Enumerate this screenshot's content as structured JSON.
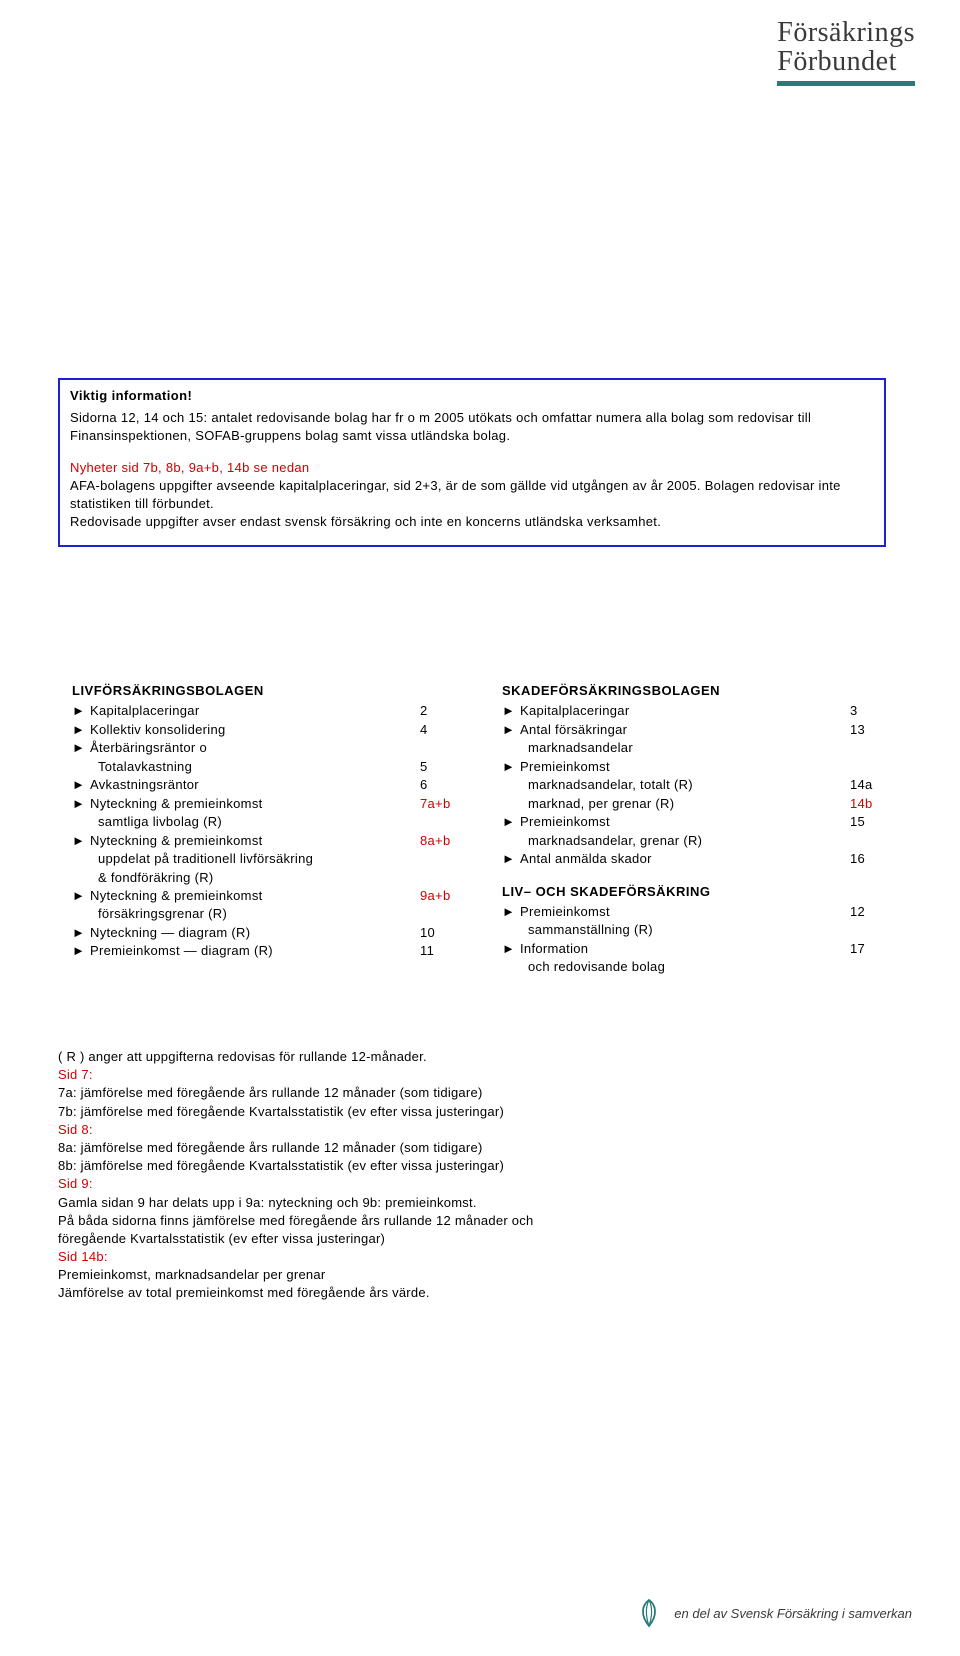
{
  "logo_top": {
    "line1": "Försäkrings",
    "line2": "Förbundet"
  },
  "info_box": {
    "title": "Viktig information!",
    "para1": "Sidorna 12, 14 och 15: antalet redovisande bolag har fr o m 2005 utökats och omfattar numera alla bolag som redovisar till Finansinspektionen, SOFAB-gruppens bolag samt vissa utländska bolag.",
    "red_line": "Nyheter sid 7b, 8b,  9a+b, 14b se nedan",
    "para2a": "AFA-bolagens uppgifter avseende kapitalplaceringar, sid 2+3, är de som gällde vid utgången av år 2005. Bolagen redovisar inte statistiken till förbundet.",
    "para2b": "Redovisade uppgifter avser endast svensk försäkring och inte en koncerns utländska verksamhet."
  },
  "toc_left": {
    "header": "LIVFÖRSÄKRINGSBOLAGEN",
    "items": [
      {
        "bullet": true,
        "text": "Kapitalplaceringar",
        "page": "2"
      },
      {
        "bullet": true,
        "text": "Kollektiv konsolidering",
        "page": "4"
      },
      {
        "bullet": true,
        "text": "Återbäringsräntor o",
        "page": ""
      },
      {
        "bullet": false,
        "text": "Totalavkastning",
        "page": "5",
        "indent": true
      },
      {
        "bullet": true,
        "text": "Avkastningsräntor",
        "page": "6"
      },
      {
        "bullet": true,
        "text": "Nyteckning & premieinkomst",
        "page": "7a+b",
        "red": true
      },
      {
        "bullet": false,
        "text": "samtliga livbolag (R)",
        "page": "",
        "indent": true
      },
      {
        "bullet": true,
        "text": "Nyteckning & premieinkomst",
        "page": "8a+b",
        "red": true
      },
      {
        "bullet": false,
        "text": "uppdelat på traditionell livförsäkring",
        "page": "",
        "indent": true
      },
      {
        "bullet": false,
        "text": "& fondföräkring (R)",
        "page": "",
        "indent": true
      },
      {
        "bullet": true,
        "text": "Nyteckning & premieinkomst",
        "page": "9a+b",
        "red": true
      },
      {
        "bullet": false,
        "text": "försäkringsgrenar (R)",
        "page": "",
        "indent": true
      },
      {
        "bullet": true,
        "text": "Nyteckning — diagram (R)",
        "page": "10"
      },
      {
        "bullet": true,
        "text": "Premieinkomst — diagram (R)",
        "page": "11"
      }
    ]
  },
  "toc_right": {
    "header": "SKADEFÖRSÄKRINGSBOLAGEN",
    "items": [
      {
        "bullet": true,
        "text": "Kapitalplaceringar",
        "page": "3",
        "pad": true
      },
      {
        "bullet": true,
        "text": "Antal försäkringar",
        "page": "13"
      },
      {
        "bullet": false,
        "text": "marknadsandelar",
        "page": "",
        "indent": true
      },
      {
        "bullet": true,
        "text": "Premieinkomst",
        "page": ""
      },
      {
        "bullet": false,
        "text": "marknadsandelar, totalt (R)",
        "page": "14a",
        "indent": true
      },
      {
        "bullet": false,
        "text": "marknad, per grenar (R)",
        "page": "14b",
        "indent": true,
        "red": true
      },
      {
        "bullet": true,
        "text": "Premieinkomst",
        "page": "15"
      },
      {
        "bullet": false,
        "text": "marknadsandelar, grenar (R)",
        "page": "",
        "indent": true
      },
      {
        "bullet": true,
        "text": "Antal anmälda skador",
        "page": "16"
      }
    ],
    "header2": "LIV– OCH SKADEFÖRSÄKRING",
    "items2": [
      {
        "bullet": true,
        "text": "Premieinkomst",
        "page": "12"
      },
      {
        "bullet": false,
        "text": "sammanställning (R)",
        "page": "",
        "indent": true
      },
      {
        "bullet": true,
        "text": "Information",
        "page": "17"
      },
      {
        "bullet": false,
        "text": "och redovisande bolag",
        "page": "",
        "indent": true
      }
    ]
  },
  "notes": {
    "line0": "( R ) anger att uppgifterna redovisas för rullande 12-månader.",
    "sid7_h": "Sid 7:",
    "sid7_a": "7a: jämförelse med föregående års rullande 12 månader (som tidigare)",
    "sid7_b": "7b: jämförelse med föregående Kvartalsstatistik (ev efter vissa justeringar)",
    "sid8_h": "Sid 8:",
    "sid8_a": "8a: jämförelse med föregående års rullande 12 månader (som tidigare)",
    "sid8_b": "8b: jämförelse med föregående Kvartalsstatistik (ev efter vissa justeringar)",
    "sid9_h": "Sid 9:",
    "sid9_a": "Gamla sidan 9 har delats upp i 9a: nyteckning och 9b: premieinkomst.",
    "sid9_b": "På båda sidorna finns jämförelse med föregående års rullande 12 månader och",
    "sid9_c": "föregående Kvartalsstatistik (ev efter vissa justeringar)",
    "sid14_h": "Sid 14b:",
    "sid14_a": "Premieinkomst, marknadsandelar per grenar",
    "sid14_b": "Jämförelse av total premieinkomst med föregående års värde."
  },
  "logo_bottom": {
    "text": "en del av Svensk Försäkring i samverkan"
  },
  "glyphs": {
    "triangle": "►"
  },
  "colors": {
    "box_border": "#2020d0",
    "red": "#d00000",
    "teal": "#2a7a7a",
    "logo_text": "#3a3a3a",
    "body_text": "#000000",
    "background": "#ffffff"
  }
}
